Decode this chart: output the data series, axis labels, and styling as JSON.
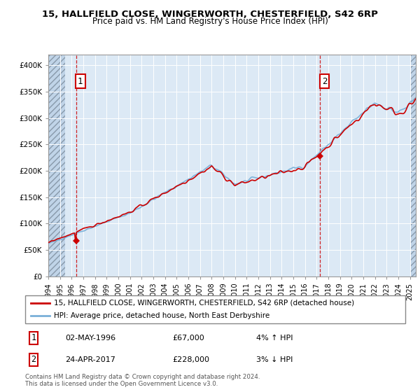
{
  "title_line1": "15, HALLFIELD CLOSE, WINGERWORTH, CHESTERFIELD, S42 6RP",
  "title_line2": "Price paid vs. HM Land Registry's House Price Index (HPI)",
  "background_color": "#ffffff",
  "plot_bg_color": "#dce9f5",
  "hatch_region_color": "#c0d4e8",
  "ylim": [
    0,
    420000
  ],
  "yticks": [
    0,
    50000,
    100000,
    150000,
    200000,
    250000,
    300000,
    350000,
    400000
  ],
  "ytick_labels": [
    "£0",
    "£50K",
    "£100K",
    "£150K",
    "£200K",
    "£250K",
    "£300K",
    "£350K",
    "£400K"
  ],
  "xmin_year": 1994.0,
  "xmax_year": 2025.5,
  "xticks": [
    1994,
    1995,
    1996,
    1997,
    1998,
    1999,
    2000,
    2001,
    2002,
    2003,
    2004,
    2005,
    2006,
    2007,
    2008,
    2009,
    2010,
    2011,
    2012,
    2013,
    2014,
    2015,
    2016,
    2017,
    2018,
    2019,
    2020,
    2021,
    2022,
    2023,
    2024,
    2025
  ],
  "hpi_color": "#7ab0d8",
  "price_color": "#cc0000",
  "transaction1_x": 1996.37,
  "transaction1_y": 67000,
  "transaction2_x": 2017.29,
  "transaction2_y": 228000,
  "legend_line1": "15, HALLFIELD CLOSE, WINGERWORTH, CHESTERFIELD, S42 6RP (detached house)",
  "legend_line2": "HPI: Average price, detached house, North East Derbyshire",
  "transaction1_date": "02-MAY-1996",
  "transaction1_price": "£67,000",
  "transaction1_hpi_change": "4% ↑ HPI",
  "transaction2_date": "24-APR-2017",
  "transaction2_price": "£228,000",
  "transaction2_hpi_change": "3% ↓ HPI",
  "footer": "Contains HM Land Registry data © Crown copyright and database right 2024.\nThis data is licensed under the Open Government Licence v3.0."
}
